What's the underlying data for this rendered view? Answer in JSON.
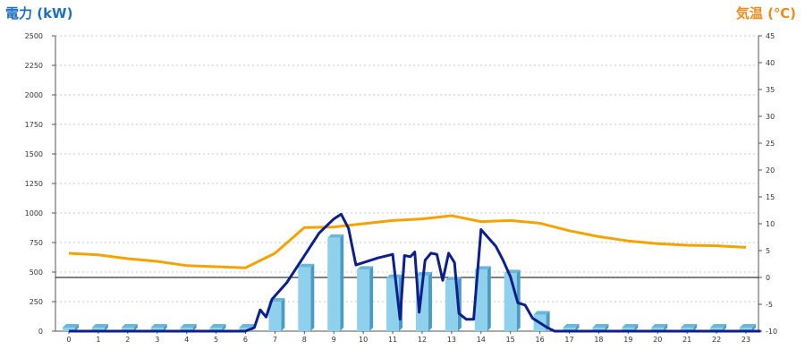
{
  "chart_data": {
    "type": "bar",
    "hours": [
      0,
      1,
      2,
      3,
      4,
      5,
      6,
      7,
      8,
      9,
      10,
      11,
      12,
      13,
      14,
      15,
      16,
      17,
      18,
      19,
      20,
      21,
      22,
      23
    ],
    "left_axis": {
      "title": "電力 (kW)",
      "ticks": [
        0,
        250,
        500,
        750,
        1000,
        1250,
        1500,
        1750,
        2000,
        2250,
        2500
      ],
      "range": [
        0,
        2500
      ],
      "color": "#1f6fc0"
    },
    "right_axis": {
      "title": "気温 (℃)",
      "ticks": [
        -10,
        -5,
        0,
        5,
        10,
        15,
        20,
        25,
        30,
        35,
        40,
        45
      ],
      "range": [
        -10,
        45
      ],
      "color": "#f08a1c"
    },
    "series": [
      {
        "type": "bar",
        "axis": "left",
        "color": "#8fd0ec",
        "values": [
          0,
          0,
          0,
          0,
          0,
          0,
          0,
          250,
          540,
          790,
          520,
          450,
          470,
          430,
          520,
          490,
          140,
          0,
          0,
          0,
          0,
          0,
          0,
          0
        ]
      },
      {
        "type": "line",
        "axis": "left",
        "color": "#0d1f8c",
        "points": [
          [
            0,
            0
          ],
          [
            6.0,
            0
          ],
          [
            6.3,
            30
          ],
          [
            6.5,
            180
          ],
          [
            6.7,
            120
          ],
          [
            6.9,
            270
          ],
          [
            7.4,
            410
          ],
          [
            7.9,
            600
          ],
          [
            8.5,
            830
          ],
          [
            9.0,
            950
          ],
          [
            9.25,
            990
          ],
          [
            9.5,
            870
          ],
          [
            9.75,
            560
          ],
          [
            10.0,
            580
          ],
          [
            10.5,
            620
          ],
          [
            11.0,
            650
          ],
          [
            11.25,
            100
          ],
          [
            11.4,
            640
          ],
          [
            11.6,
            630
          ],
          [
            11.75,
            670
          ],
          [
            11.9,
            160
          ],
          [
            12.1,
            600
          ],
          [
            12.3,
            660
          ],
          [
            12.5,
            650
          ],
          [
            12.7,
            430
          ],
          [
            12.9,
            660
          ],
          [
            13.1,
            580
          ],
          [
            13.25,
            150
          ],
          [
            13.5,
            100
          ],
          [
            13.75,
            100
          ],
          [
            14.0,
            860
          ],
          [
            14.5,
            720
          ],
          [
            14.75,
            600
          ],
          [
            15.0,
            460
          ],
          [
            15.25,
            240
          ],
          [
            15.5,
            220
          ],
          [
            15.75,
            110
          ],
          [
            16.0,
            70
          ],
          [
            16.25,
            30
          ],
          [
            16.5,
            0
          ],
          [
            23.5,
            0
          ]
        ]
      },
      {
        "type": "line",
        "axis": "right",
        "color": "#f5a300",
        "points": [
          [
            0,
            4.5
          ],
          [
            1,
            4.2
          ],
          [
            2,
            3.5
          ],
          [
            3,
            3.0
          ],
          [
            4,
            2.2
          ],
          [
            5,
            2.0
          ],
          [
            6,
            1.8
          ],
          [
            7,
            4.5
          ],
          [
            8,
            9.3
          ],
          [
            9,
            9.4
          ],
          [
            10,
            10.0
          ],
          [
            11,
            10.6
          ],
          [
            12,
            10.9
          ],
          [
            13,
            11.5
          ],
          [
            14,
            10.4
          ],
          [
            15,
            10.6
          ],
          [
            16,
            10.1
          ],
          [
            17,
            8.7
          ],
          [
            18,
            7.6
          ],
          [
            19,
            6.8
          ],
          [
            20,
            6.3
          ],
          [
            21,
            6.0
          ],
          [
            22,
            5.9
          ],
          [
            23,
            5.6
          ]
        ]
      }
    ],
    "zero_temperature_line": 0,
    "grid": true
  }
}
